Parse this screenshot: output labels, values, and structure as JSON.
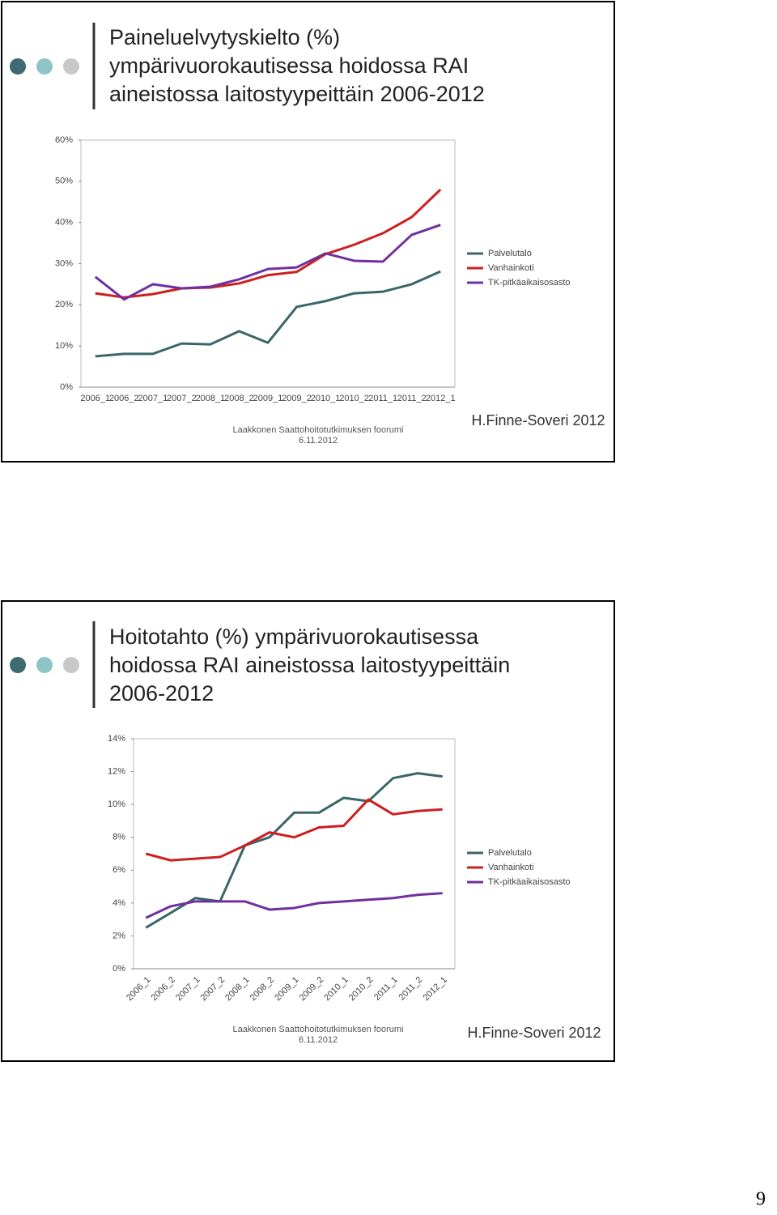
{
  "chart_data": [
    {
      "type": "line",
      "title": [
        "Paineluelvytyskielto (%)",
        "ympärivuorokautisessa hoidossa RAI",
        "aineistossa laitostyypeittäin   2006-2012"
      ],
      "categories": [
        "2006_1",
        "2006_2",
        "2007_1",
        "2007_2",
        "2008_1",
        "2008_2",
        "2009_1",
        "2009_2",
        "2010_1",
        "2010_2",
        "2011_1",
        "2011_2",
        "2012_1"
      ],
      "series": [
        {
          "name": "Palvelutalo",
          "color": "#3a6668",
          "values": [
            7.5,
            8.1,
            8.1,
            10.6,
            10.4,
            13.6,
            10.8,
            19.5,
            20.9,
            22.8,
            23.2,
            25.0,
            28.1
          ]
        },
        {
          "name": "Vanhainkoti",
          "color": "#cc1f1f",
          "values": [
            22.8,
            21.8,
            22.6,
            24.0,
            24.2,
            25.2,
            27.2,
            28.0,
            32.3,
            34.6,
            37.4,
            41.3,
            48.0
          ]
        },
        {
          "name": "TK-pitkäaikaisosasto",
          "color": "#7030a0",
          "values": [
            26.8,
            21.3,
            25.0,
            24.0,
            24.4,
            26.2,
            28.7,
            29.1,
            32.5,
            30.7,
            30.5,
            37.0,
            39.4
          ]
        }
      ],
      "ylim": [
        0,
        60
      ],
      "yticks": [
        {
          "value": 0,
          "label": "0%"
        },
        {
          "value": 10,
          "label": "10%"
        },
        {
          "value": 20,
          "label": "20%"
        },
        {
          "value": 30,
          "label": "30%"
        },
        {
          "value": 40,
          "label": "40%"
        },
        {
          "value": 50,
          "label": "50%"
        },
        {
          "value": 60,
          "label": "60%"
        }
      ],
      "x_label_rotation": 0,
      "legend": "right"
    },
    {
      "type": "line",
      "title": [
        "Hoitotahto (%) ympärivuorokautisessa",
        "hoidossa RAI aineistossa laitostyypeittäin",
        "2006-2012"
      ],
      "categories": [
        "2006_1",
        "2006_2",
        "2007_1",
        "2007_2",
        "2008_1",
        "2008_2",
        "2009_1",
        "2009_2",
        "2010_1",
        "2010_2",
        "2011_1",
        "2011_2",
        "2012_1"
      ],
      "series": [
        {
          "name": "Palvelutalo",
          "color": "#3a6668",
          "values": [
            2.5,
            3.4,
            4.3,
            4.1,
            7.5,
            8.0,
            9.5,
            9.5,
            10.4,
            10.2,
            11.6,
            11.9,
            11.7
          ]
        },
        {
          "name": "Vanhainkoti",
          "color": "#cc1f1f",
          "values": [
            7.0,
            6.6,
            6.7,
            6.8,
            7.5,
            8.3,
            8.0,
            8.6,
            8.7,
            10.3,
            9.4,
            9.6,
            9.7
          ]
        },
        {
          "name": "TK-pitkäaikaisosasto",
          "color": "#7030a0",
          "values": [
            3.1,
            3.8,
            4.1,
            4.1,
            4.1,
            3.6,
            3.7,
            4.0,
            4.1,
            4.2,
            4.3,
            4.5,
            4.6
          ]
        }
      ],
      "ylim": [
        0,
        14
      ],
      "yticks": [
        {
          "value": 0,
          "label": "0%"
        },
        {
          "value": 2,
          "label": "2%"
        },
        {
          "value": 4,
          "label": "4%"
        },
        {
          "value": 6,
          "label": "6%"
        },
        {
          "value": 8,
          "label": "8%"
        },
        {
          "value": 10,
          "label": "10%"
        },
        {
          "value": 12,
          "label": "12%"
        },
        {
          "value": 14,
          "label": "14%"
        }
      ],
      "x_label_rotation": -45,
      "legend": "right"
    }
  ],
  "footers": [
    {
      "source": "Laakkonen Saattohoitotutkimuksen foorumi",
      "date": "6.11.2012",
      "author": "H.Finne-Soveri 2012"
    },
    {
      "source": "Laakkonen Saattohoitotutkimuksen foorumi",
      "date": "6.11.2012",
      "author": "H.Finne-Soveri 2012"
    }
  ],
  "page_number": "9"
}
